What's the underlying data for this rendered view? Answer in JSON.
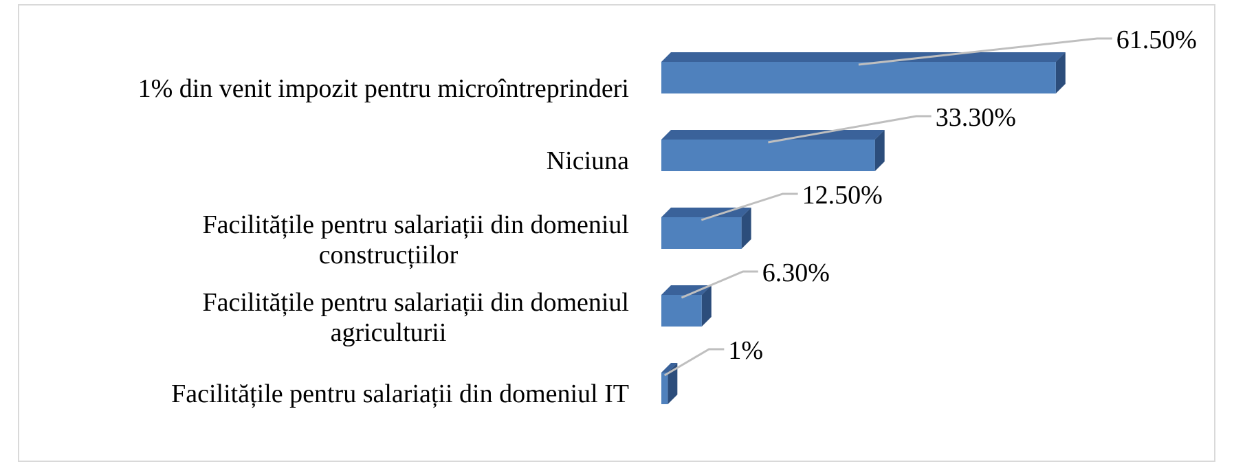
{
  "chart_data": {
    "type": "bar",
    "orientation": "horizontal",
    "style": "3d",
    "categories": [
      "1% din venit impozit pentru microîntreprinderi",
      "Niciuna",
      "Facilitățile pentru salariații din domeniul construcțiilor",
      "Facilitățile pentru salariații din domeniul agriculturii",
      "Facilitățile pentru salariații din domeniul IT"
    ],
    "category_label_lines": [
      [
        "1% din venit impozit pentru microîntreprinderi"
      ],
      [
        "Niciuna"
      ],
      [
        "Facilitățile pentru salariații din domeniul",
        "construcțiilor"
      ],
      [
        "Facilitățile pentru salariații din domeniul",
        "agriculturii"
      ],
      [
        "Facilitățile pentru salariații din domeniul IT"
      ]
    ],
    "values": [
      61.5,
      33.3,
      12.5,
      6.3,
      1
    ],
    "data_labels": [
      "61.50%",
      "33.30%",
      "12.50%",
      "6.30%",
      "1%"
    ],
    "xlim": [
      0,
      62
    ],
    "gridlines": false,
    "legend": "none",
    "colors": {
      "bar_front": "#4f81bd",
      "bar_top": "#3a629a",
      "bar_side": "#2c4d7b",
      "leader_line": "#bfbfbf",
      "frame": "#d9d9d9"
    }
  }
}
